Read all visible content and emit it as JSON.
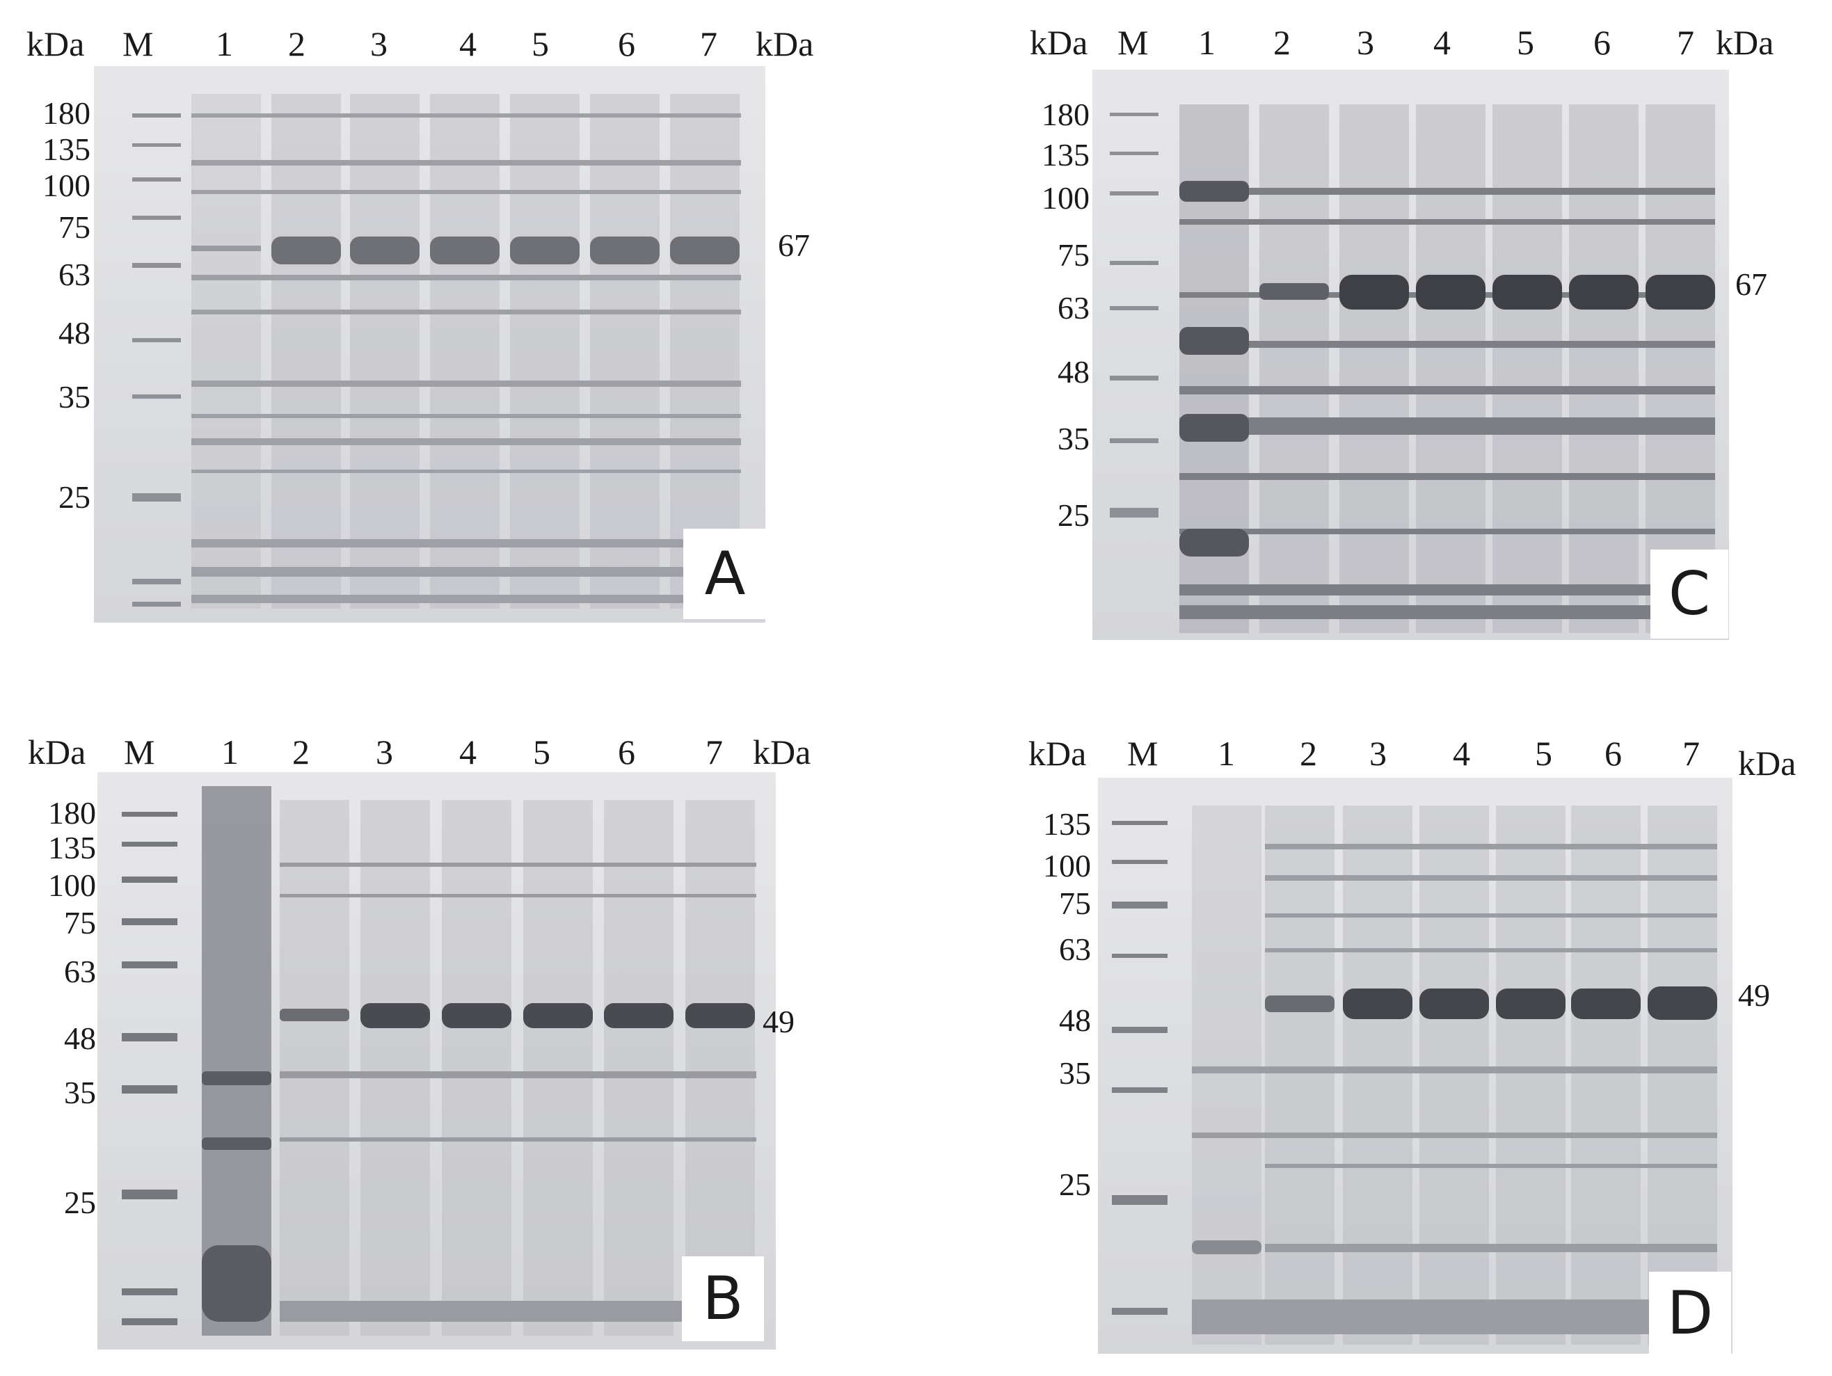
{
  "panels": {
    "A": {
      "letter": "A",
      "header": {
        "unit_left": "kDa",
        "marker": "M",
        "lanes": [
          "1",
          "2",
          "3",
          "4",
          "5",
          "6",
          "7"
        ],
        "unit_right": "kDa"
      },
      "mw_labels": [
        "180",
        "135",
        "100",
        "75",
        "63",
        "48",
        "35",
        "25"
      ],
      "band_label": "67"
    },
    "C": {
      "letter": "C",
      "header": {
        "unit_left": "kDa",
        "marker": "M",
        "lanes": [
          "1",
          "2",
          "3",
          "4",
          "5",
          "6",
          "7"
        ],
        "unit_right": "kDa"
      },
      "mw_labels": [
        "180",
        "135",
        "100",
        "75",
        "63",
        "48",
        "35",
        "25"
      ],
      "band_label": "67"
    },
    "B": {
      "letter": "B",
      "header": {
        "unit_left": "kDa",
        "marker": "M",
        "lanes": [
          "1",
          "2",
          "3",
          "4",
          "5",
          "6",
          "7"
        ],
        "unit_right": "kDa"
      },
      "mw_labels": [
        "180",
        "135",
        "100",
        "75",
        "63",
        "48",
        "35",
        "25"
      ],
      "band_label": "49"
    },
    "D": {
      "letter": "D",
      "header": {
        "unit_left": "kDa",
        "marker": "M",
        "lanes": [
          "1",
          "2",
          "3",
          "4",
          "5",
          "6",
          "7"
        ],
        "unit_right": "kDa"
      },
      "mw_labels": [
        "135",
        "100",
        "75",
        "63",
        "48",
        "35",
        "25"
      ],
      "band_label": "49"
    }
  }
}
